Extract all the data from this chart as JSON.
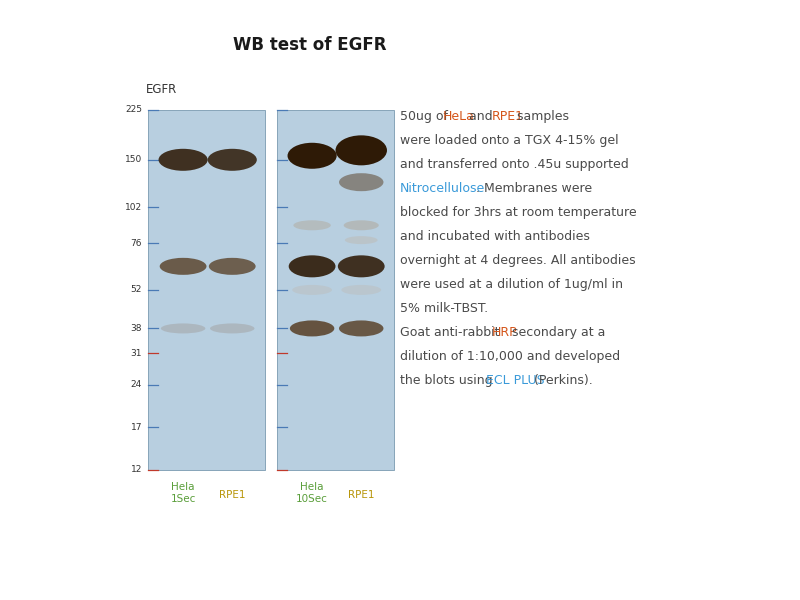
{
  "title": "WB test of EGFR",
  "title_fontsize": 12,
  "title_fontweight": "bold",
  "bg_color": "#ffffff",
  "gel_bg_color": "#b8cfe0",
  "blue_marker_color": "#4a7ab5",
  "red_marker_color": "#c0392b",
  "lane_label_color_hela": "#5a9e3a",
  "lane_label_color_rpe1": "#b8960a",
  "egfr_label": "EGFR",
  "mw_labels": [
    "225",
    "150",
    "102",
    "76",
    "52",
    "38",
    "31",
    "24",
    "17",
    "12"
  ],
  "mw_values": [
    225,
    150,
    102,
    76,
    52,
    38,
    31,
    24,
    17,
    12
  ],
  "red_markers": [
    31,
    12
  ],
  "annotation_lines": [
    [
      "50ug of ",
      "HeLa",
      " and ",
      "RPE1",
      " samples"
    ],
    [
      "were loaded onto a TGX 4-15% gel"
    ],
    [
      "and transferred onto .45u supported"
    ],
    [
      "Nitrocellulose",
      ". Membranes were"
    ],
    [
      "blocked for 3hrs at room temperature"
    ],
    [
      "and incubated with antibodies"
    ],
    [
      "overnight at 4 degrees. All antibodies"
    ],
    [
      "were used at a dilution of 1ug/ml in"
    ],
    [
      "5% milk-TBST."
    ],
    [
      "Goat anti-rabbit ",
      "HRP",
      " secondary at a"
    ],
    [
      "dilution of 1:10,000 and developed"
    ],
    [
      "the blots using ",
      "ECL PLUS",
      " (Perkins)."
    ]
  ],
  "highlight_map": {
    "HeLa": "#d4551a",
    "RPE1": "#d4551a",
    "HRP": "#d4551a",
    "Nitrocellulose": "#3a9ad9",
    "ECL PLUS": "#3a9ad9"
  },
  "annotation_color": "#4a4a4a",
  "annotation_fontsize": 9.0
}
